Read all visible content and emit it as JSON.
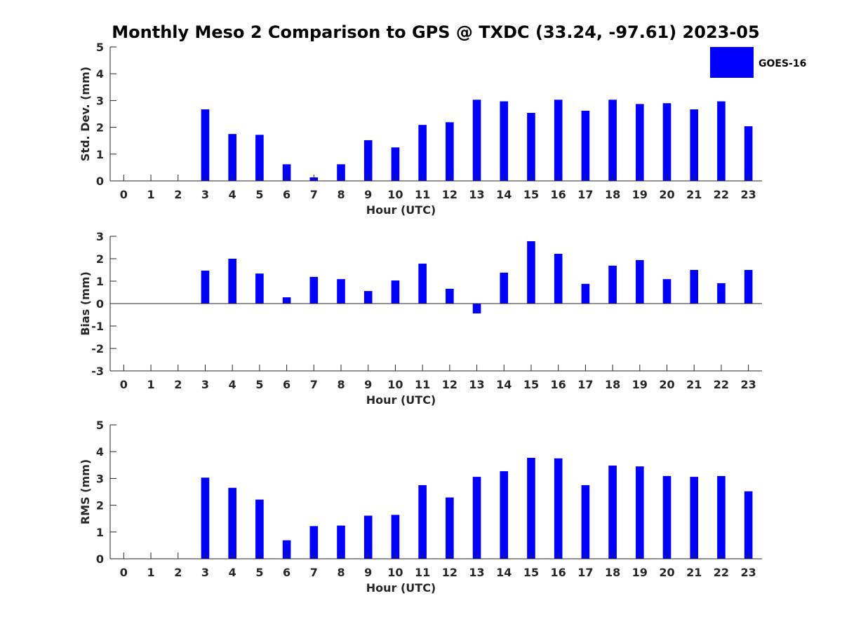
{
  "title": "Monthly Meso 2 Comparison to GPS @ TXDC (33.24, -97.61) 2023-05",
  "legend": {
    "label": "GOES-16",
    "placement": "top-right",
    "color": "#0000ff"
  },
  "chart_data": [
    {
      "type": "bar",
      "xlabel": "Hour (UTC)",
      "ylabel": "Std. Dev. (mm)",
      "xlim": [
        -0.5,
        23.5
      ],
      "ylim": [
        0,
        5
      ],
      "yticks": [
        0,
        1,
        2,
        3,
        4,
        5
      ],
      "grid": false,
      "categories": [
        "0",
        "1",
        "2",
        "3",
        "4",
        "5",
        "6",
        "7",
        "8",
        "9",
        "10",
        "11",
        "12",
        "13",
        "14",
        "15",
        "16",
        "17",
        "18",
        "19",
        "20",
        "21",
        "22",
        "23"
      ],
      "series": [
        {
          "name": "GOES-16",
          "color": "#0000ff",
          "values": [
            null,
            null,
            null,
            2.67,
            1.75,
            1.72,
            0.62,
            0.13,
            0.62,
            1.52,
            1.25,
            2.09,
            2.19,
            3.03,
            2.97,
            2.54,
            3.03,
            2.62,
            3.03,
            2.87,
            2.9,
            2.67,
            2.97,
            2.04
          ]
        }
      ]
    },
    {
      "type": "bar",
      "xlabel": "Hour (UTC)",
      "ylabel": "Bias (mm)",
      "xlim": [
        -0.5,
        23.5
      ],
      "ylim": [
        -3,
        3
      ],
      "yticks": [
        -3,
        -2,
        -1,
        0,
        1,
        2,
        3
      ],
      "grid": false,
      "categories": [
        "0",
        "1",
        "2",
        "3",
        "4",
        "5",
        "6",
        "7",
        "8",
        "9",
        "10",
        "11",
        "12",
        "13",
        "14",
        "15",
        "16",
        "17",
        "18",
        "19",
        "20",
        "21",
        "22",
        "23"
      ],
      "series": [
        {
          "name": "GOES-16",
          "color": "#0000ff",
          "values": [
            null,
            null,
            null,
            1.47,
            2.0,
            1.34,
            0.28,
            1.19,
            1.09,
            0.56,
            1.03,
            1.78,
            0.66,
            -0.44,
            1.38,
            2.78,
            2.22,
            0.88,
            1.69,
            1.94,
            1.09,
            1.5,
            0.91,
            1.5
          ]
        }
      ]
    },
    {
      "type": "bar",
      "xlabel": "Hour (UTC)",
      "ylabel": "RMS (mm)",
      "xlim": [
        -0.5,
        23.5
      ],
      "ylim": [
        0,
        5
      ],
      "yticks": [
        0,
        1,
        2,
        3,
        4,
        5
      ],
      "grid": false,
      "categories": [
        "0",
        "1",
        "2",
        "3",
        "4",
        "5",
        "6",
        "7",
        "8",
        "9",
        "10",
        "11",
        "12",
        "13",
        "14",
        "15",
        "16",
        "17",
        "18",
        "19",
        "20",
        "21",
        "22",
        "23"
      ],
      "series": [
        {
          "name": "GOES-16",
          "color": "#0000ff",
          "values": [
            null,
            null,
            null,
            3.03,
            2.65,
            2.21,
            0.69,
            1.22,
            1.24,
            1.61,
            1.64,
            2.75,
            2.29,
            3.06,
            3.27,
            3.77,
            3.75,
            2.75,
            3.48,
            3.45,
            3.09,
            3.06,
            3.09,
            2.52
          ]
        }
      ]
    }
  ]
}
